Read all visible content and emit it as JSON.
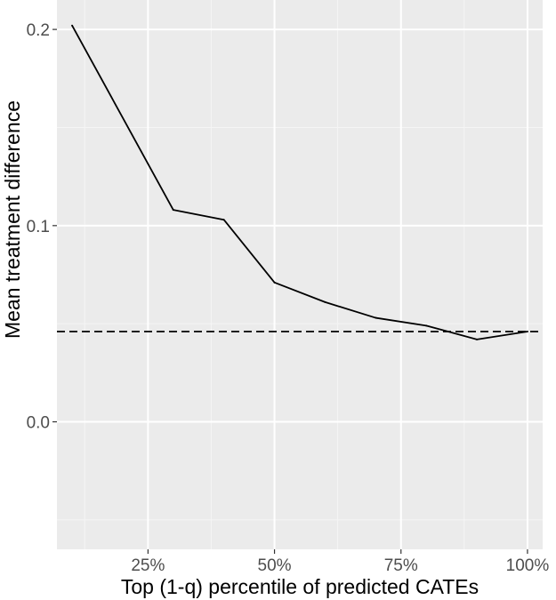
{
  "chart_data": {
    "type": "line",
    "title": "",
    "xlabel": "Top (1-q) percentile of predicted CATEs",
    "ylabel": "Mean treatment difference",
    "x_ticks": [
      0.25,
      0.5,
      0.75,
      1.0
    ],
    "x_tick_labels": [
      "25%",
      "50%",
      "75%",
      "100%"
    ],
    "y_ticks": [
      0.0,
      0.1,
      0.2
    ],
    "y_tick_labels": [
      "0.0",
      "0.1",
      "0.2"
    ],
    "xlim": [
      0.07,
      1.03
    ],
    "ylim": [
      -0.065,
      0.215
    ],
    "grid": true,
    "series": [
      {
        "x": [
          0.1,
          0.3,
          0.4,
          0.5,
          0.6,
          0.7,
          0.8,
          0.9,
          1.0
        ],
        "values": [
          0.202,
          0.108,
          0.103,
          0.071,
          0.061,
          0.053,
          0.049,
          0.042,
          0.046
        ],
        "color": "#000000",
        "style": "solid"
      }
    ],
    "reference_line": {
      "y": 0.046,
      "style": "dashed",
      "color": "#000000"
    },
    "colors": {
      "panel_background": "#ebebeb",
      "grid_major": "#ffffff",
      "grid_minor": "#f5f5f5"
    }
  }
}
